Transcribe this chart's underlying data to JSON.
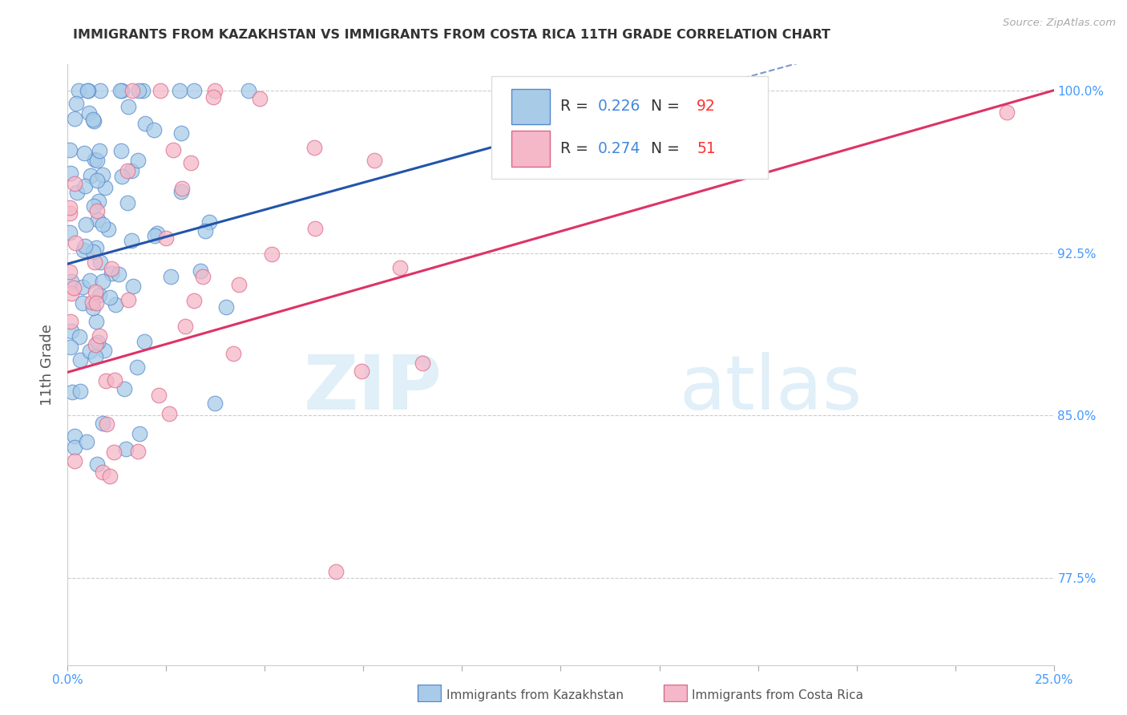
{
  "title": "IMMIGRANTS FROM KAZAKHSTAN VS IMMIGRANTS FROM COSTA RICA 11TH GRADE CORRELATION CHART",
  "source_text": "Source: ZipAtlas.com",
  "ylabel": "11th Grade",
  "xlim": [
    0.0,
    0.25
  ],
  "ylim": [
    0.735,
    1.012
  ],
  "yticks": [
    0.775,
    0.85,
    0.925,
    1.0
  ],
  "yticklabels": [
    "77.5%",
    "85.0%",
    "92.5%",
    "100.0%"
  ],
  "legend_label1": "Immigrants from Kazakhstan",
  "legend_label2": "Immigrants from Costa Rica",
  "R1": "0.226",
  "N1": "92",
  "R2": "0.274",
  "N2": "51",
  "color_blue_face": "#a8cce8",
  "color_blue_edge": "#5588cc",
  "color_pink_face": "#f4b8c8",
  "color_pink_edge": "#dd6688",
  "color_blue_line": "#2255aa",
  "color_pink_line": "#dd3366",
  "watermark_color": "#ddeef8",
  "background_color": "#ffffff",
  "grid_color": "#cccccc",
  "title_color": "#333333",
  "source_color": "#aaaaaa",
  "axis_label_color": "#555555",
  "tick_label_color": "#4499ff",
  "legend_text_color": "#333333",
  "legend_val_color": "#4488dd"
}
